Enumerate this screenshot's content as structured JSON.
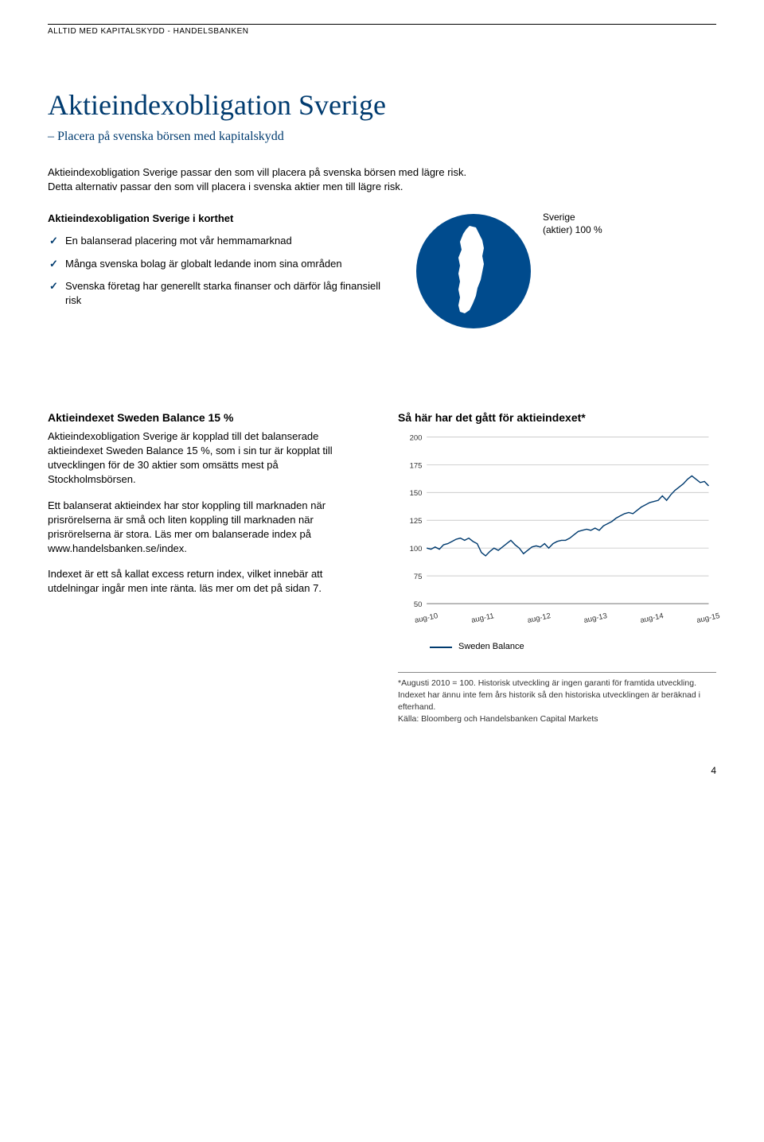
{
  "header": {
    "text": "ALLTID MED KAPITALSKYDD - HANDELSBANKEN"
  },
  "title": "Aktieindexobligation Sverige",
  "subtitle": "– Placera på svenska börsen med kapitalskydd",
  "intro": "Aktieindexobligation Sverige passar den som vill placera på svenska börsen med lägre risk. Detta alternativ passar den som vill placera i svenska aktier men till lägre risk.",
  "korthet": {
    "heading": "Aktieindexobligation Sverige i korthet",
    "items": [
      "En balanserad placering mot vår hemmamarknad",
      "Många svenska bolag är globalt ledande inom sina områden",
      "Svenska företag har generellt starka finanser och därför låg finansiell risk"
    ]
  },
  "pie": {
    "label_line1": "Sverige",
    "label_line2": "(aktier) 100 %",
    "fill_color": "#004b8d",
    "map_color": "#ffffff"
  },
  "left_column": {
    "heading": "Aktieindexet Sweden Balance 15 %",
    "p1": "Aktieindexobligation Sverige är kopplad till det balanserade aktieindexet Sweden Balance 15 %, som i sin tur är kopplat till utvecklingen för de 30 aktier som omsätts mest på Stockholmsbörsen.",
    "p2": "Ett balanserat aktieindex har stor koppling till marknaden när prisrörelserna är små och liten koppling till marknaden när prisrörelserna är stora. Läs mer om balanserade index på www.handelsbanken.se/index.",
    "p3": "Indexet är ett så kallat excess return index, vilket innebär att utdelningar ingår men inte ränta. läs mer om det på sidan 7."
  },
  "right_column": {
    "heading": "Så här har det gått för aktieindexet*",
    "chart": {
      "type": "line",
      "x_labels": [
        "aug-10",
        "aug-11",
        "aug-12",
        "aug-13",
        "aug-14",
        "aug-15"
      ],
      "y_ticks": [
        50,
        75,
        100,
        125,
        150,
        175,
        200
      ],
      "ylim": [
        50,
        200
      ],
      "series_name": "Sweden Balance",
      "line_color": "#003b6f",
      "grid_color": "#cccccc",
      "axis_color": "#666666",
      "background_color": "#ffffff",
      "label_fontsize": 10,
      "line_width": 1.5,
      "values": [
        100,
        99,
        101,
        99,
        103,
        104,
        106,
        108,
        109,
        107,
        109,
        106,
        104,
        96,
        93,
        97,
        100,
        98,
        101,
        104,
        107,
        103,
        100,
        95,
        98,
        101,
        102,
        101,
        104,
        100,
        104,
        106,
        107,
        107,
        109,
        112,
        115,
        116,
        117,
        116,
        118,
        116,
        120,
        122,
        124,
        127,
        129,
        131,
        132,
        131,
        134,
        137,
        139,
        141,
        142,
        143,
        147,
        143,
        148,
        152,
        155,
        158,
        162,
        165,
        162,
        159,
        160,
        156
      ]
    },
    "legend": "Sweden Balance",
    "footnote": "*Augusti 2010 = 100. Historisk utveckling är ingen garanti för framtida utveckling. Indexet har ännu inte fem års historik så den historiska utvecklingen är beräknad i efterhand.",
    "source": "Källa: Bloomberg och Handelsbanken Capital Markets"
  },
  "page_number": "4"
}
